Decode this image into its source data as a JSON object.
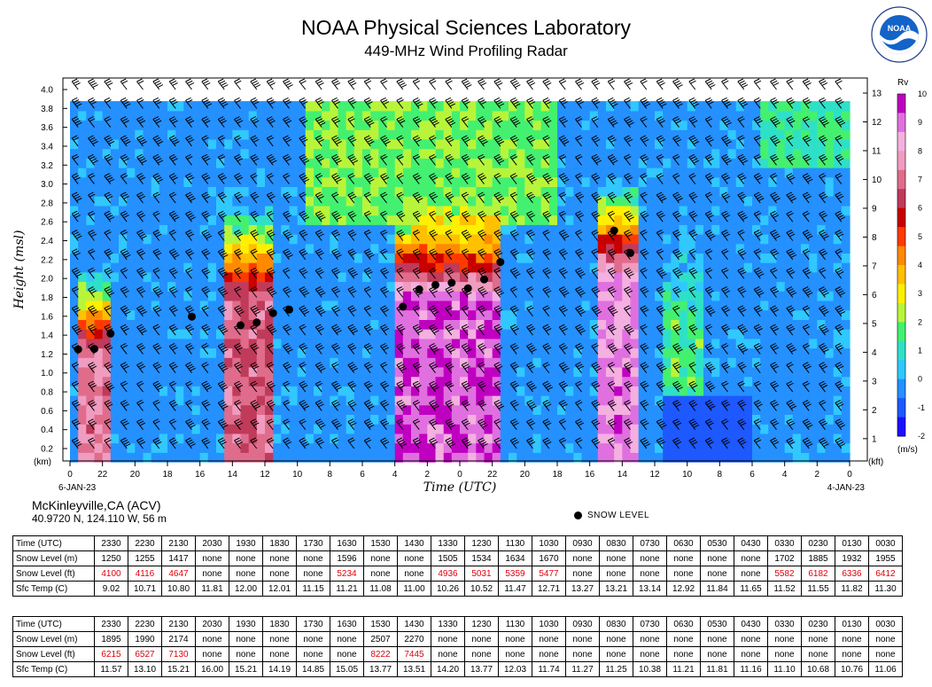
{
  "header": {
    "title": "NOAA Physical Sciences Laboratory",
    "subtitle": "449-MHz Wind Profiling Radar"
  },
  "logo": {
    "text": "NOAA",
    "icon": "noaa-logo-icon"
  },
  "chart_data": {
    "type": "heatmap",
    "ylabel": "Height (msl)",
    "xlabel": "Time (UTC)",
    "y_left_unit": "(km)",
    "y_right_unit": "(kft)",
    "y_left_ticks": [
      "0.2",
      "0.4",
      "0.6",
      "0.8",
      "1.0",
      "1.2",
      "1.4",
      "1.6",
      "1.8",
      "2.0",
      "2.2",
      "2.4",
      "2.6",
      "2.8",
      "3.0",
      "3.2",
      "3.4",
      "3.6",
      "3.8",
      "4.0"
    ],
    "y_left_range": [
      0.1,
      4.05
    ],
    "y_right_ticks": [
      "1",
      "2",
      "3",
      "4",
      "5",
      "6",
      "7",
      "8",
      "9",
      "10",
      "11",
      "12",
      "13"
    ],
    "x_tick_labels": [
      "0",
      "22",
      "20",
      "18",
      "16",
      "14",
      "12",
      "10",
      "8",
      "6",
      "4",
      "2",
      "0",
      "22",
      "20",
      "18",
      "16",
      "14",
      "12",
      "10",
      "8",
      "6",
      "4",
      "2",
      "0"
    ],
    "x_start_label": "6-JAN-23",
    "x_end_label": "4-JAN-23",
    "colorbar": {
      "label": "Rv",
      "unit": "(m/s)",
      "ticks": [
        "-2",
        "-1",
        "0",
        "1",
        "2",
        "3",
        "4",
        "5",
        "6",
        "7",
        "8",
        "9",
        "10"
      ],
      "range": [
        -2,
        10
      ]
    },
    "snow_level_points": [
      {
        "hour": 0.5,
        "km": 1.25
      },
      {
        "hour": 1.5,
        "km": 1.255
      },
      {
        "hour": 2.5,
        "km": 1.417
      },
      {
        "hour": 7.5,
        "km": 1.596
      },
      {
        "hour": 10.5,
        "km": 1.505
      },
      {
        "hour": 11.5,
        "km": 1.534
      },
      {
        "hour": 12.5,
        "km": 1.634
      },
      {
        "hour": 13.5,
        "km": 1.67
      },
      {
        "hour": 20.5,
        "km": 1.702
      },
      {
        "hour": 21.5,
        "km": 1.885
      },
      {
        "hour": 22.5,
        "km": 1.932
      },
      {
        "hour": 23.5,
        "km": 1.955
      },
      {
        "hour": 24.5,
        "km": 1.895
      },
      {
        "hour": 25.5,
        "km": 1.99
      },
      {
        "hour": 26.5,
        "km": 2.174
      },
      {
        "hour": 33.5,
        "km": 2.507
      },
      {
        "hour": 34.5,
        "km": 2.27
      }
    ]
  },
  "station": {
    "name": "McKinleyville,CA (ACV)",
    "coords": "40.9720 N, 124.110 W, 56 m"
  },
  "legend": {
    "snow_level": "SNOW LEVEL"
  },
  "tables": [
    {
      "rows": [
        {
          "label": "Time (UTC)",
          "cells": [
            "2330",
            "2230",
            "2130",
            "2030",
            "1930",
            "1830",
            "1730",
            "1630",
            "1530",
            "1430",
            "1330",
            "1230",
            "1130",
            "1030",
            "0930",
            "0830",
            "0730",
            "0630",
            "0530",
            "0430",
            "0330",
            "0230",
            "0130",
            "0030"
          ]
        },
        {
          "label": "Snow Level (m)",
          "cells": [
            "1250",
            "1255",
            "1417",
            "none",
            "none",
            "none",
            "none",
            "1596",
            "none",
            "none",
            "1505",
            "1534",
            "1634",
            "1670",
            "none",
            "none",
            "none",
            "none",
            "none",
            "none",
            "1702",
            "1885",
            "1932",
            "1955"
          ]
        },
        {
          "label": "Snow Level (ft)",
          "cells": [
            "4100",
            "4116",
            "4647",
            "none",
            "none",
            "none",
            "none",
            "5234",
            "none",
            "none",
            "4936",
            "5031",
            "5359",
            "5477",
            "none",
            "none",
            "none",
            "none",
            "none",
            "none",
            "5582",
            "6182",
            "6336",
            "6412"
          ]
        },
        {
          "label": "Sfc Temp (C)",
          "cells": [
            "9.02",
            "10.71",
            "10.80",
            "11.81",
            "12.00",
            "12.01",
            "11.15",
            "11.21",
            "11.08",
            "11.00",
            "10.26",
            "10.52",
            "11.47",
            "12.71",
            "13.27",
            "13.21",
            "13.14",
            "12.92",
            "11.84",
            "11.65",
            "11.52",
            "11.55",
            "11.82",
            "11.30"
          ]
        }
      ]
    },
    {
      "rows": [
        {
          "label": "Time (UTC)",
          "cells": [
            "2330",
            "2230",
            "2130",
            "2030",
            "1930",
            "1830",
            "1730",
            "1630",
            "1530",
            "1430",
            "1330",
            "1230",
            "1130",
            "1030",
            "0930",
            "0830",
            "0730",
            "0630",
            "0530",
            "0430",
            "0330",
            "0230",
            "0130",
            "0030"
          ]
        },
        {
          "label": "Snow Level (m)",
          "cells": [
            "1895",
            "1990",
            "2174",
            "none",
            "none",
            "none",
            "none",
            "none",
            "2507",
            "2270",
            "none",
            "none",
            "none",
            "none",
            "none",
            "none",
            "none",
            "none",
            "none",
            "none",
            "none",
            "none",
            "none",
            "none"
          ]
        },
        {
          "label": "Snow Level (ft)",
          "cells": [
            "6215",
            "6527",
            "7130",
            "none",
            "none",
            "none",
            "none",
            "none",
            "8222",
            "7445",
            "none",
            "none",
            "none",
            "none",
            "none",
            "none",
            "none",
            "none",
            "none",
            "none",
            "none",
            "none",
            "none",
            "none"
          ]
        },
        {
          "label": "Sfc Temp (C)",
          "cells": [
            "11.57",
            "13.10",
            "15.21",
            "16.00",
            "15.21",
            "14.19",
            "14.85",
            "15.05",
            "13.77",
            "13.51",
            "14.20",
            "13.77",
            "12.03",
            "11.74",
            "11.27",
            "11.25",
            "10.38",
            "11.21",
            "11.81",
            "11.16",
            "11.10",
            "10.68",
            "10.76",
            "11.06"
          ]
        }
      ]
    }
  ]
}
